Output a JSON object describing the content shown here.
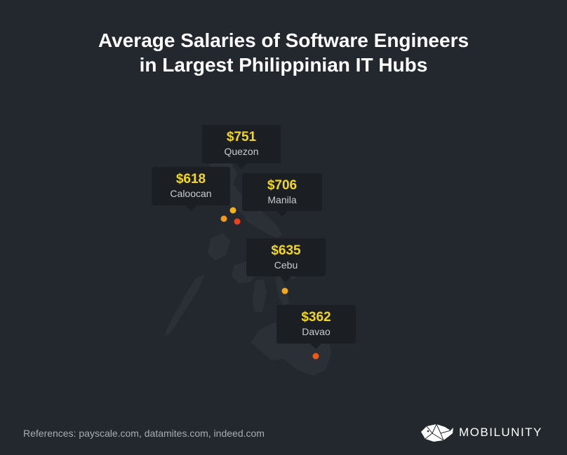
{
  "title": {
    "line1": "Average Salaries of Software Engineers",
    "line2": "in Largest Philippinian IT Hubs"
  },
  "cities": [
    {
      "name": "Quezon",
      "salary": "$751",
      "dot_color": "#f2b318"
    },
    {
      "name": "Caloocan",
      "salary": "$618",
      "dot_color": "#f09a1a"
    },
    {
      "name": "Manila",
      "salary": "$706",
      "dot_color": "#e8431d"
    },
    {
      "name": "Cebu",
      "salary": "$635",
      "dot_color": "#f2a81b"
    },
    {
      "name": "Davao",
      "salary": "$362",
      "dot_color": "#ea5a1c"
    }
  ],
  "references": "References: payscale.com, datamites.com, indeed.com",
  "brand": {
    "name": "MOBILUNITY",
    "icon": "whale-logo-icon"
  },
  "colors": {
    "background": "#23282e",
    "salary_text": "#f4d61a",
    "callout_bg": "#1b1f24"
  }
}
